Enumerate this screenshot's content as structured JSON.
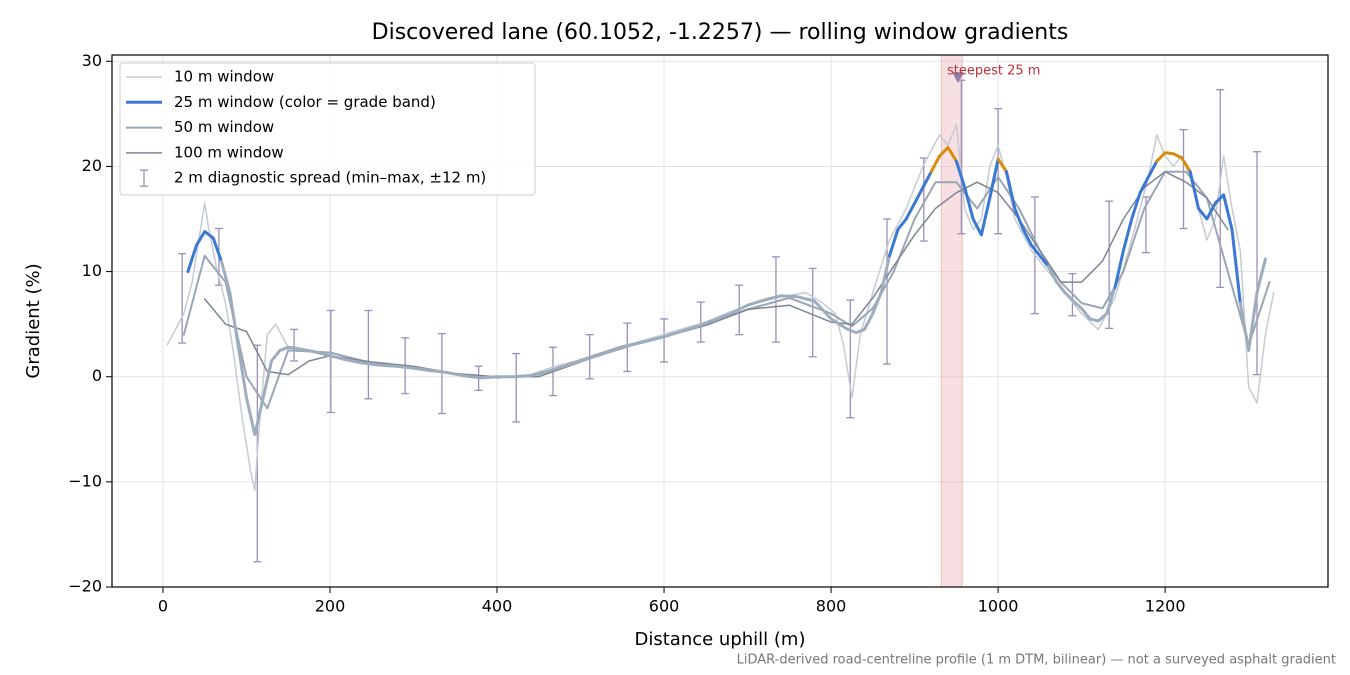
{
  "chart_data": {
    "type": "line",
    "title": "Discovered lane (60.1052, -1.2257) — rolling window gradients",
    "xlabel": "Distance uphill (m)",
    "ylabel": "Gradient (%)",
    "footnote": "LiDAR-derived road-centreline profile (1 m DTM, bilinear) — not a surveyed asphalt gradient",
    "xlim": [
      -61,
      1395
    ],
    "ylim": [
      -20,
      30.6
    ],
    "xticks": [
      0,
      200,
      400,
      600,
      800,
      1000,
      1200
    ],
    "yticks": [
      {
        "value": -20,
        "label": "−20"
      },
      {
        "value": -10,
        "label": "−10"
      },
      0,
      10,
      20,
      30
    ],
    "grid": true,
    "legend": "upper left",
    "series": [
      {
        "name": "10 m window",
        "color": "#c5cbd3",
        "width": 1.5,
        "x": [
          5,
          15,
          25,
          35,
          45,
          50,
          55,
          65,
          75,
          85,
          95,
          105,
          110,
          115,
          125,
          135,
          150,
          170,
          200,
          230,
          260,
          290,
          320,
          350,
          380,
          410,
          440,
          470,
          500,
          530,
          560,
          590,
          620,
          650,
          680,
          710,
          740,
          770,
          790,
          805,
          815,
          825,
          835,
          850,
          870,
          890,
          910,
          930,
          940,
          950,
          960,
          970,
          980,
          990,
          1000,
          1010,
          1020,
          1040,
          1060,
          1080,
          1100,
          1120,
          1140,
          1160,
          1180,
          1190,
          1200,
          1210,
          1220,
          1230,
          1240,
          1250,
          1260,
          1270,
          1280,
          1290,
          1300,
          1310,
          1320,
          1330
        ],
        "values": [
          3,
          4.5,
          6,
          9,
          14,
          16.5,
          14,
          10,
          7,
          2,
          -4,
          -9,
          -10.8,
          -5,
          4,
          5,
          2.8,
          2.5,
          2,
          1.5,
          1.2,
          0.9,
          0.5,
          0.3,
          -0.2,
          0,
          0.2,
          1,
          1.6,
          2.4,
          3.1,
          3.8,
          4.5,
          5.2,
          6.2,
          7,
          7.6,
          8,
          7,
          6,
          3,
          -2,
          4,
          8,
          13,
          16,
          20,
          23,
          22,
          24,
          16,
          14,
          15,
          20,
          22,
          19,
          15,
          12,
          10,
          8,
          6,
          4.5,
          7.5,
          13,
          19,
          23,
          21,
          20,
          21,
          19,
          16,
          13,
          15,
          21,
          16,
          12,
          -1,
          -2.5,
          4,
          8
        ]
      },
      {
        "name": "25 m window (color = grade band)",
        "color": "#3a78d4",
        "width": 3,
        "band_edges": [
          10,
          20
        ],
        "band_colors": [
          "#9eadbd",
          "#3a78d4",
          "#d98c0a"
        ],
        "x": [
          30,
          40,
          50,
          60,
          70,
          80,
          90,
          100,
          110,
          120,
          130,
          140,
          150,
          160,
          180,
          200,
          220,
          240,
          260,
          280,
          300,
          320,
          340,
          360,
          380,
          400,
          420,
          440,
          460,
          480,
          500,
          520,
          540,
          560,
          580,
          600,
          620,
          640,
          660,
          680,
          700,
          720,
          740,
          760,
          780,
          800,
          810,
          820,
          830,
          840,
          850,
          860,
          870,
          880,
          890,
          900,
          910,
          920,
          930,
          940,
          950,
          960,
          970,
          980,
          990,
          1000,
          1010,
          1020,
          1030,
          1040,
          1050,
          1060,
          1070,
          1080,
          1090,
          1100,
          1110,
          1120,
          1130,
          1140,
          1150,
          1160,
          1170,
          1180,
          1190,
          1200,
          1210,
          1220,
          1230,
          1240,
          1250,
          1260,
          1270,
          1280,
          1290,
          1300,
          1310,
          1320
        ],
        "values": [
          10,
          12.5,
          13.8,
          13.2,
          11,
          8,
          3,
          -2,
          -5.5,
          -2,
          1.5,
          2.5,
          2.8,
          2.7,
          2.4,
          2,
          1.6,
          1.3,
          1.1,
          1,
          0.8,
          0.6,
          0.4,
          0.1,
          -0.1,
          0,
          0,
          0.1,
          0.5,
          1,
          1.5,
          2,
          2.5,
          3,
          3.4,
          3.8,
          4.3,
          4.8,
          5.4,
          6,
          6.8,
          7.3,
          7.7,
          7.6,
          7.2,
          5.5,
          5,
          4.5,
          4.2,
          4.5,
          6,
          8,
          11.5,
          14,
          15,
          16.5,
          18,
          19.5,
          21,
          21.8,
          20.5,
          18,
          15,
          13.5,
          17,
          20.7,
          19.5,
          16,
          14,
          12.5,
          11.5,
          10.5,
          9,
          8,
          7.2,
          6.5,
          5.5,
          5.3,
          6,
          8.5,
          12,
          15,
          17.5,
          19,
          20.5,
          21.3,
          21.2,
          20.8,
          19.5,
          16,
          15,
          16.5,
          17.3,
          14,
          7,
          2.5,
          8,
          11.2
        ]
      },
      {
        "name": "50 m window",
        "color": "#9aa6b5",
        "width": 2,
        "x": [
          25,
          50,
          75,
          100,
          125,
          150,
          200,
          250,
          300,
          350,
          400,
          450,
          500,
          550,
          600,
          650,
          700,
          750,
          800,
          825,
          850,
          875,
          900,
          925,
          950,
          975,
          1000,
          1025,
          1050,
          1075,
          1100,
          1125,
          1150,
          1175,
          1200,
          1225,
          1250,
          1275,
          1300,
          1325
        ],
        "values": [
          4,
          11.5,
          9,
          0,
          -3,
          2.5,
          2.3,
          1.3,
          0.8,
          0.3,
          -0.1,
          0.2,
          1.6,
          2.9,
          3.8,
          4.9,
          6.4,
          7.5,
          6,
          4.8,
          6.5,
          10,
          15,
          18.5,
          18.5,
          16,
          19,
          16,
          12,
          9,
          7,
          6.5,
          10,
          16,
          19.5,
          19.5,
          17,
          10,
          3,
          9
        ]
      },
      {
        "name": "100 m window",
        "color": "#7d8594",
        "width": 1.5,
        "x": [
          50,
          75,
          100,
          125,
          150,
          175,
          200,
          250,
          300,
          350,
          400,
          450,
          500,
          550,
          600,
          650,
          700,
          750,
          800,
          825,
          850,
          875,
          900,
          925,
          950,
          975,
          1000,
          1025,
          1050,
          1075,
          1100,
          1125,
          1150,
          1175,
          1200,
          1225,
          1250,
          1275
        ],
        "values": [
          7.4,
          5,
          4.3,
          0.5,
          0.2,
          1.5,
          2,
          1.4,
          1,
          0.3,
          0,
          0,
          1.4,
          2.8,
          3.8,
          4.9,
          6.4,
          6.8,
          5.2,
          5,
          7.5,
          10.5,
          13.5,
          16,
          17.5,
          18.5,
          17.5,
          15,
          12,
          9,
          9,
          11,
          15,
          18,
          19.5,
          18.5,
          17,
          14
        ]
      }
    ],
    "errorbars": {
      "name": "2 m diagnostic spread (min–max, ±12 m)",
      "color": "#9a8fb8",
      "x": [
        23,
        67,
        113,
        157,
        201,
        246,
        290,
        334,
        378,
        423,
        467,
        511,
        556,
        600,
        644,
        690,
        734,
        778,
        823,
        867,
        911,
        956,
        1000,
        1044,
        1089,
        1133,
        1177,
        1222,
        1266,
        1310
      ],
      "low": [
        3.2,
        8.7,
        -17.6,
        1.5,
        -3.4,
        -2.1,
        -1.6,
        -3.5,
        -1.3,
        -4.3,
        -1.8,
        -0.2,
        0.5,
        1.4,
        3.3,
        4.0,
        3.3,
        1.9,
        -3.9,
        1.2,
        12.9,
        13.6,
        13.6,
        6.0,
        5.8,
        4.6,
        11.8,
        14.1,
        8.5,
        0.2
      ],
      "high": [
        11.7,
        14.1,
        3.0,
        4.5,
        6.3,
        6.3,
        3.7,
        4.1,
        1.0,
        2.2,
        2.8,
        4.0,
        5.1,
        5.5,
        7.1,
        8.7,
        11.4,
        10.3,
        7.3,
        15.0,
        20.8,
        28.2,
        25.5,
        17.1,
        9.8,
        16.7,
        17.1,
        23.5,
        27.3,
        21.4
      ]
    },
    "highlight": {
      "x": [
        932,
        957
      ],
      "color": "#e8a3ab"
    },
    "annotation": {
      "text": "steepest 25 m",
      "x": 952,
      "y": 28.5,
      "color": "#c0303c",
      "marker_color": "#8a82a8"
    }
  }
}
